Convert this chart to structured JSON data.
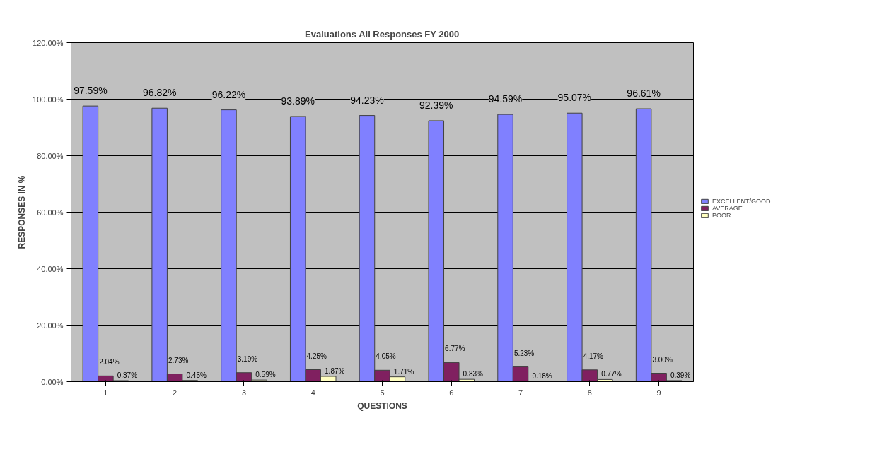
{
  "chart_data": {
    "type": "bar",
    "title": "Evaluations All Responses FY 2000",
    "xlabel": "QUESTIONS",
    "ylabel": "RESPONSES IN %",
    "categories": [
      "1",
      "2",
      "3",
      "4",
      "5",
      "6",
      "7",
      "8",
      "9"
    ],
    "series": [
      {
        "name": "EXCELLENT/GOOD",
        "color": "#8080ff",
        "values": [
          97.59,
          96.82,
          96.22,
          93.89,
          94.23,
          92.39,
          94.59,
          95.07,
          96.61
        ],
        "value_labels": [
          "97.59%",
          "96.82%",
          "96.22%",
          "93.89%",
          "94.23%",
          "92.39%",
          "94.59%",
          "95.07%",
          "96.61%"
        ]
      },
      {
        "name": "AVERAGE",
        "color": "#802060",
        "values": [
          2.04,
          2.73,
          3.19,
          4.25,
          4.05,
          6.77,
          5.23,
          4.17,
          3.0
        ],
        "value_labels": [
          "2.04%",
          "2.73%",
          "3.19%",
          "4.25%",
          "4.05%",
          "6.77%",
          "5.23%",
          "4.17%",
          "3.00%"
        ]
      },
      {
        "name": "POOR",
        "color": "#ffffc0",
        "values": [
          0.37,
          0.45,
          0.59,
          1.87,
          1.71,
          0.83,
          0.18,
          0.77,
          0.39
        ],
        "value_labels": [
          "0.37%",
          "0.45%",
          "0.59%",
          "1.87%",
          "1.71%",
          "0.83%",
          "0.18%",
          "0.77%",
          "0.39%"
        ]
      }
    ],
    "ylim": [
      0,
      120
    ],
    "yticks": [
      {
        "value": 0,
        "label": "0.00%"
      },
      {
        "value": 20,
        "label": "20.00%"
      },
      {
        "value": 40,
        "label": "40.00%"
      },
      {
        "value": 60,
        "label": "60.00%"
      },
      {
        "value": 80,
        "label": "80.00%"
      },
      {
        "value": 100,
        "label": "100.00%"
      },
      {
        "value": 120,
        "label": "120.00%"
      }
    ],
    "grid": "y",
    "legend": "right"
  }
}
